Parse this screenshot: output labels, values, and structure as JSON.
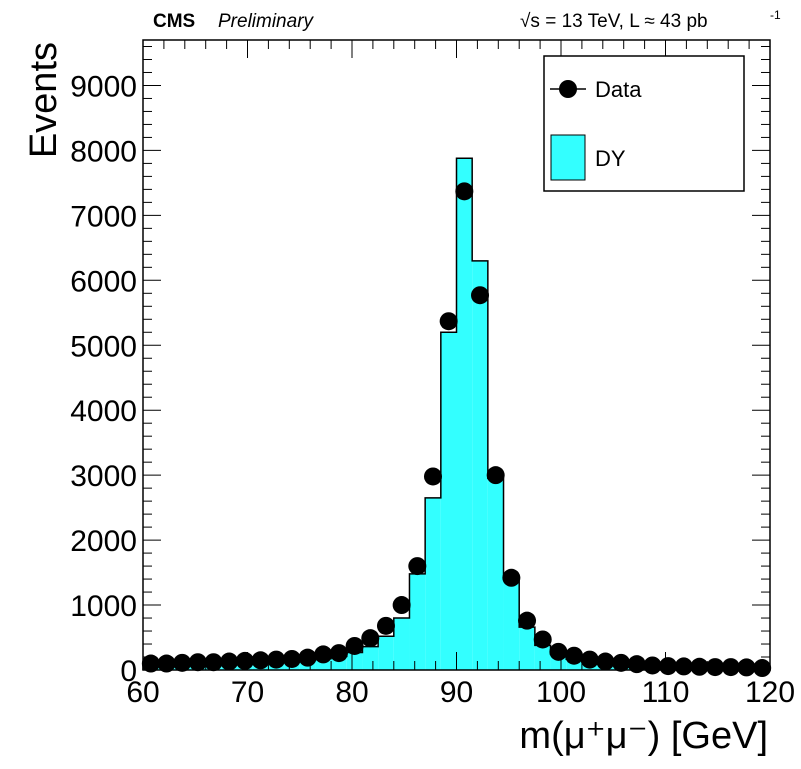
{
  "header": {
    "experiment": "CMS",
    "status": "Preliminary",
    "energy_lumi": "√s = 13 TeV, L ≈ 43 pb",
    "lumi_exponent": "-1"
  },
  "chart_data": {
    "type": "histogram",
    "xlabel": "m(μ⁺μ⁻) [GeV]",
    "ylabel": "Events",
    "xlim": [
      60,
      120
    ],
    "ylim": [
      0,
      9700
    ],
    "xticks": [
      "60",
      "70",
      "80",
      "90",
      "100",
      "110",
      "120"
    ],
    "yticks": [
      "0",
      "1000",
      "2000",
      "3000",
      "4000",
      "5000",
      "6000",
      "7000",
      "8000",
      "9000"
    ],
    "bin_width": 1.5,
    "legend": [
      {
        "name": "Data",
        "marker": "circle"
      },
      {
        "name": "DY",
        "fill": "#33ffff"
      }
    ],
    "series": [
      {
        "name": "Data",
        "kind": "points",
        "x": [
          60.75,
          62.25,
          63.75,
          65.25,
          66.75,
          68.25,
          69.75,
          71.25,
          72.75,
          74.25,
          75.75,
          77.25,
          78.75,
          80.25,
          81.75,
          83.25,
          84.75,
          86.25,
          87.75,
          89.25,
          90.75,
          92.25,
          93.75,
          95.25,
          96.75,
          98.25,
          99.75,
          101.25,
          102.75,
          104.25,
          105.75,
          107.25,
          108.75,
          110.25,
          111.75,
          113.25,
          114.75,
          116.25,
          117.75,
          119.25
        ],
        "values": [
          100,
          100,
          110,
          120,
          120,
          130,
          140,
          150,
          160,
          170,
          190,
          240,
          260,
          370,
          490,
          680,
          1000,
          1600,
          2980,
          5370,
          7370,
          5770,
          3000,
          1420,
          760,
          470,
          280,
          220,
          160,
          130,
          110,
          90,
          70,
          60,
          55,
          50,
          45,
          45,
          40,
          30
        ]
      },
      {
        "name": "DY",
        "kind": "filled-step",
        "bin_edges": [
          60,
          61.5,
          63,
          64.5,
          66,
          67.5,
          69,
          70.5,
          72,
          73.5,
          75,
          76.5,
          78,
          79.5,
          81,
          82.5,
          84,
          85.5,
          87,
          88.5,
          90,
          91.5,
          93,
          94.5,
          96,
          97.5,
          99,
          100.5,
          102,
          103.5,
          105,
          106.5,
          108,
          109.5,
          111,
          112.5,
          114,
          115.5,
          117,
          118.5,
          120
        ],
        "values": [
          60,
          65,
          70,
          75,
          80,
          85,
          95,
          105,
          115,
          130,
          150,
          175,
          210,
          270,
          360,
          520,
          800,
          1480,
          2650,
          5200,
          7880,
          6300,
          2950,
          1400,
          660,
          380,
          240,
          165,
          125,
          95,
          80,
          70,
          60,
          55,
          50,
          45,
          42,
          40,
          38,
          35
        ]
      }
    ]
  }
}
